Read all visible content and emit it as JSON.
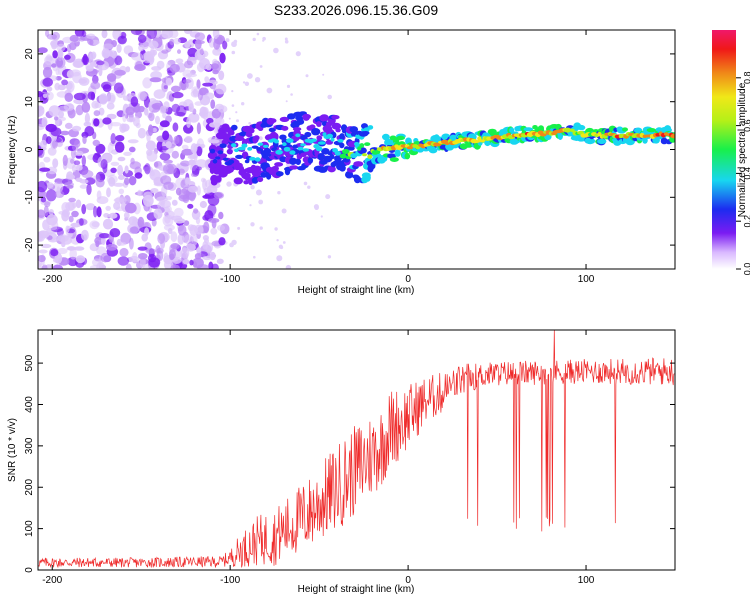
{
  "title": "S233.2026.096.15.36.G09",
  "chart_data": [
    {
      "type": "heatmap",
      "name": "spectrogram",
      "xlabel": "Height of straight line (km)",
      "ylabel": "Frequency (Hz)",
      "xlim": [
        -208,
        150
      ],
      "ylim": [
        -25,
        25
      ],
      "xticks": [
        -200,
        -100,
        0,
        100
      ],
      "yticks": [
        -20,
        -10,
        0,
        10,
        20
      ],
      "colorbar": {
        "label": "Normalized spectral amplitude",
        "range": [
          0,
          1
        ],
        "ticks": [
          "0.0",
          "0.2",
          "0.4",
          "0.6",
          "0.8"
        ]
      },
      "noise_region_x": [
        -208,
        -103
      ],
      "ridge": {
        "x": [
          -110,
          -90,
          -70,
          -55,
          -40,
          -25,
          -10,
          0,
          20,
          40,
          60,
          80,
          90,
          100,
          120,
          150
        ],
        "freq_hz": [
          -1,
          -1,
          1,
          2,
          1,
          -1,
          0.5,
          0.5,
          1.5,
          2,
          3,
          3.5,
          4,
          3,
          3,
          3
        ],
        "peak_amplitude": [
          0.35,
          0.45,
          0.5,
          0.5,
          0.55,
          0.7,
          0.9,
          0.95,
          0.9,
          0.9,
          0.95,
          0.95,
          0.9,
          0.85,
          0.95,
          0.95
        ]
      }
    },
    {
      "type": "line",
      "name": "snr",
      "xlabel": "Height of straight line (km)",
      "ylabel": "SNR (10 * v/v)",
      "xlim": [
        -208,
        150
      ],
      "ylim": [
        0,
        580
      ],
      "xticks": [
        -200,
        -100,
        0,
        100
      ],
      "yticks": [
        0,
        100,
        200,
        300,
        400,
        500
      ],
      "color": "#ef2b2b",
      "envelope": {
        "x": [
          -208,
          -150,
          -105,
          -100,
          -95,
          -85,
          -75,
          -65,
          -55,
          -45,
          -35,
          -25,
          -15,
          -10,
          0,
          10,
          20,
          30,
          40,
          50,
          100,
          150
        ],
        "mean": [
          18,
          18,
          20,
          30,
          45,
          70,
          80,
          110,
          140,
          180,
          220,
          260,
          300,
          340,
          370,
          410,
          430,
          460,
          470,
          475,
          480,
          480
        ],
        "spread": [
          12,
          12,
          14,
          20,
          40,
          60,
          70,
          80,
          90,
          100,
          110,
          110,
          100,
          100,
          80,
          60,
          50,
          40,
          30,
          30,
          30,
          35
        ]
      },
      "dropout_range_x": [
        20,
        120
      ],
      "dropout_min_snr": 90,
      "peak": {
        "x": 82,
        "snr": 580
      }
    }
  ]
}
